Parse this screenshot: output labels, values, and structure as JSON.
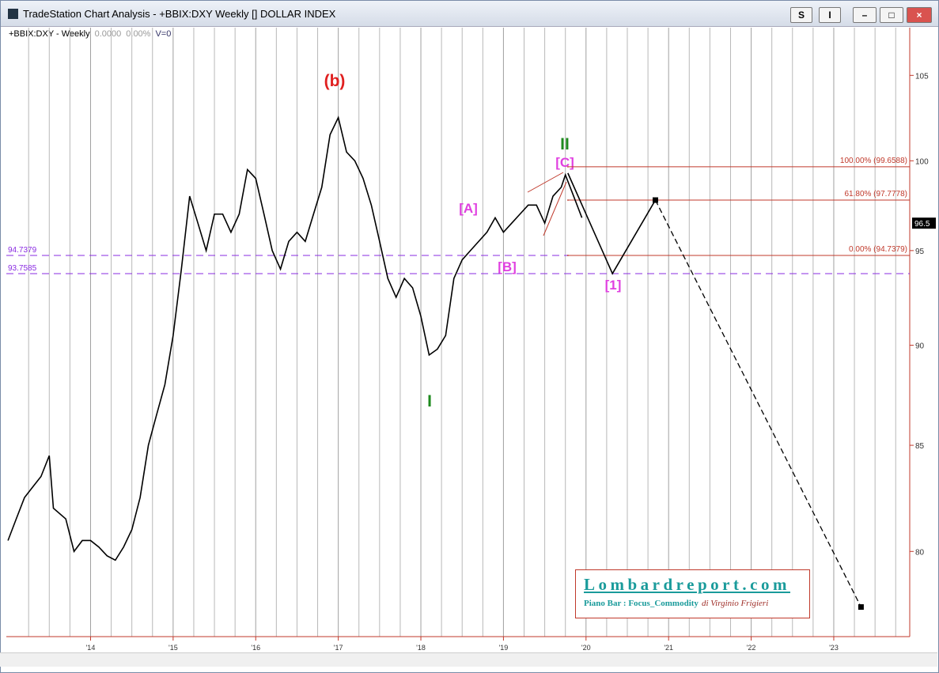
{
  "window": {
    "title": "TradeStation Chart Analysis - +BBIX:DXY Weekly [] DOLLAR INDEX",
    "buttons": [
      "S",
      "I"
    ],
    "symbol_line": [
      "+BBIX:DXY - Weekly",
      "0.0000",
      "0.00%",
      "V=0"
    ]
  },
  "chart_data": {
    "type": "line",
    "log_scale": true,
    "grid": true,
    "xlim": [
      2012.98,
      2023.92
    ],
    "xticks": [
      {
        "value": 2014,
        "label": "'14"
      },
      {
        "value": 2015,
        "label": "'15"
      },
      {
        "value": 2016,
        "label": "'16"
      },
      {
        "value": 2017,
        "label": "'17"
      },
      {
        "value": 2018,
        "label": "'18"
      },
      {
        "value": 2019,
        "label": "'19"
      },
      {
        "value": 2020,
        "label": "'20"
      },
      {
        "value": 2021,
        "label": "'21"
      },
      {
        "value": 2022,
        "label": "'22"
      },
      {
        "value": 2023,
        "label": "'23"
      }
    ],
    "ylim": [
      76.2,
      107.9
    ],
    "yticks": [
      80,
      85,
      90,
      95,
      100,
      105
    ],
    "series": [
      {
        "color": "#000000",
        "x": [
          2013.0,
          2013.1,
          2013.2,
          2013.3,
          2013.4,
          2013.5,
          2013.55,
          2013.7,
          2013.8,
          2013.9,
          2014.0,
          2014.1,
          2014.2,
          2014.3,
          2014.4,
          2014.5,
          2014.6,
          2014.7,
          2014.8,
          2014.9,
          2015.0,
          2015.1,
          2015.2,
          2015.3,
          2015.4,
          2015.5,
          2015.6,
          2015.7,
          2015.8,
          2015.9,
          2016.0,
          2016.1,
          2016.2,
          2016.3,
          2016.4,
          2016.5,
          2016.6,
          2016.7,
          2016.8,
          2016.9,
          2017.0,
          2017.1,
          2017.2,
          2017.3,
          2017.4,
          2017.5,
          2017.6,
          2017.7,
          2017.8,
          2017.9,
          2018.0,
          2018.1,
          2018.2,
          2018.3,
          2018.4,
          2018.5,
          2018.6,
          2018.7,
          2018.8,
          2018.9,
          2019.0,
          2019.1,
          2019.2,
          2019.3,
          2019.4,
          2019.5,
          2019.6,
          2019.7,
          2019.75,
          2019.85,
          2019.95
        ],
        "values": [
          80.5,
          81.5,
          82.5,
          83,
          83.5,
          84.5,
          82,
          81.5,
          80,
          80.5,
          80.5,
          80.2,
          79.8,
          79.6,
          80.2,
          81,
          82.5,
          85,
          86.5,
          88,
          90.5,
          94,
          98,
          96.5,
          95,
          97,
          97,
          96,
          97,
          99.5,
          99,
          97,
          95,
          94,
          95.5,
          96,
          95.5,
          97,
          98.5,
          101.5,
          102.5,
          100.5,
          100,
          99,
          97.5,
          95.5,
          93.5,
          92.5,
          93.5,
          93,
          91.5,
          89.5,
          89.8,
          90.5,
          93.5,
          94.5,
          95,
          95.5,
          96,
          96.8,
          96,
          96.5,
          97,
          97.5,
          97.5,
          96.5,
          98,
          98.5,
          99.2,
          98,
          96.8
        ]
      },
      {
        "color": "#000000",
        "dashed": true,
        "x": [
          2020.84,
          2023.33
        ],
        "values": [
          97.78,
          77.5
        ]
      },
      {
        "color": "#000000",
        "x": [
          2019.78,
          2020.32,
          2020.84
        ],
        "values": [
          99.3,
          93.76,
          97.78
        ]
      }
    ],
    "levels": [
      {
        "value": 94.7379,
        "label": 94.7379,
        "color": "#8a2be2",
        "dashed": true,
        "side": "left"
      },
      {
        "value": 93.7585,
        "label": 93.7585,
        "color": "#8a2be2",
        "dashed": true,
        "side": "left"
      },
      {
        "value": 99.6588,
        "label": "100.00% (99.6588)",
        "color": "#c0392b",
        "side": "right",
        "from": 2019.78
      },
      {
        "value": 97.7778,
        "label": "61.80% (97.7778)",
        "color": "#c0392b",
        "side": "right",
        "from": 2019.78
      },
      {
        "value": 94.7379,
        "label": "0.00% (94.7379)",
        "color": "#c0392b",
        "side": "right",
        "from": 2019.78
      }
    ],
    "last_price": 96.5,
    "annotations": [
      "(b)",
      "II",
      "[C]",
      "[A]",
      "[B]",
      "[1]",
      "I"
    ]
  },
  "logo": {
    "title": "Lombardreport.com",
    "subtitle": "Piano Bar : Focus_Commodity",
    "author": "di Virginio Frigieri"
  }
}
